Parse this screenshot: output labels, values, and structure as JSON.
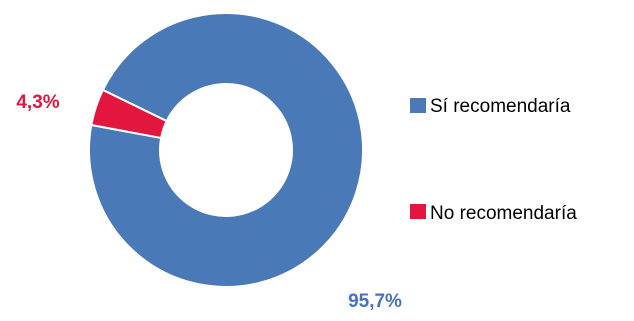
{
  "chart_data": {
    "type": "pie",
    "variant": "donut",
    "title": "",
    "legend_position": "right",
    "series": [
      {
        "name": "Sí recomendaría",
        "value": 95.7,
        "label": "95,7%",
        "color": "#4A79B8",
        "label_color": "#4472C4"
      },
      {
        "name": "No recomendaría",
        "value": 4.3,
        "label": "4,3%",
        "color": "#E2163F",
        "label_color": "#E2163F"
      }
    ]
  }
}
